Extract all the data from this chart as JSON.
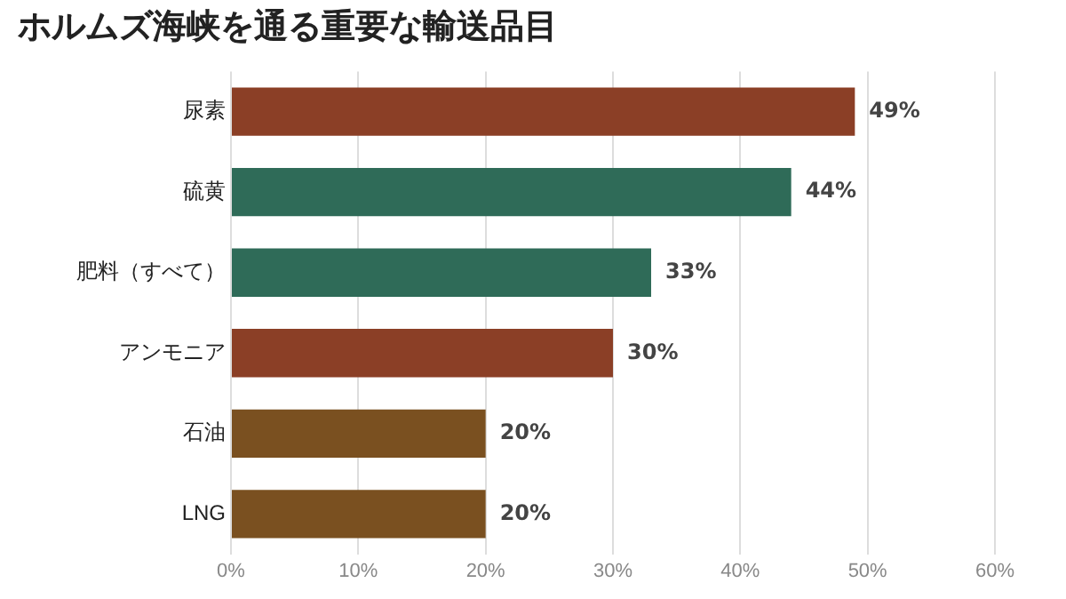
{
  "chart_data": {
    "type": "bar",
    "orientation": "horizontal",
    "title": "ホルムズ海峡を通る重要な輸送品目",
    "categories": [
      "尿素",
      "硫黄",
      "肥料（すべて）",
      "アンモニア",
      "石油",
      "LNG"
    ],
    "values": [
      49,
      44,
      33,
      30,
      20,
      20
    ],
    "colors": [
      "#8b3f26",
      "#2f6b58",
      "#2f6b58",
      "#8b3f26",
      "#7a5020",
      "#7a5020"
    ],
    "value_labels": [
      "49%",
      "44%",
      "33%",
      "30%",
      "20%",
      "20%"
    ],
    "xlim": [
      0,
      60
    ],
    "xticks": [
      {
        "value": 0,
        "label": "0%"
      },
      {
        "value": 10,
        "label": "10%"
      },
      {
        "value": 20,
        "label": "20%"
      },
      {
        "value": 30,
        "label": "30%"
      },
      {
        "value": 40,
        "label": "40%"
      },
      {
        "value": 50,
        "label": "50%"
      },
      {
        "value": 60,
        "label": "60%"
      }
    ],
    "grid": "x"
  }
}
